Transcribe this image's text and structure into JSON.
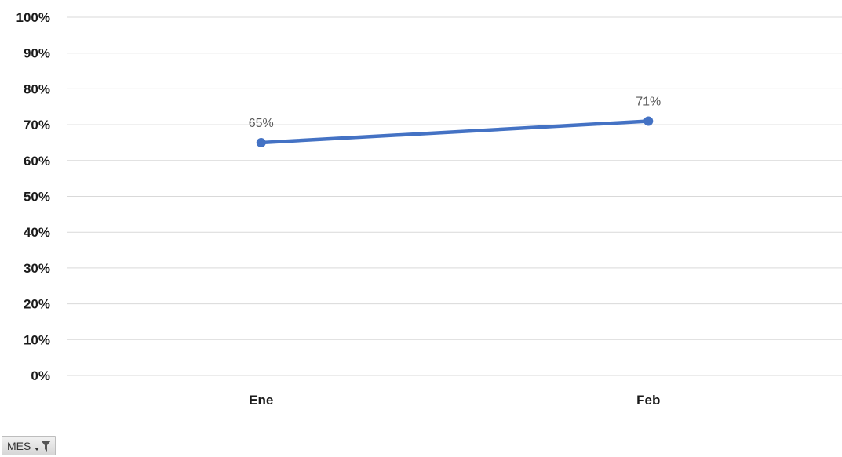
{
  "chart_data": {
    "type": "line",
    "categories": [
      "Ene",
      "Feb"
    ],
    "series": [
      {
        "values": [
          0.65,
          0.71
        ],
        "data_labels": [
          "65%",
          "71%"
        ],
        "color": "#4472C4"
      }
    ],
    "ylim": [
      0,
      1
    ],
    "yticks": [
      "0%",
      "10%",
      "20%",
      "30%",
      "40%",
      "50%",
      "60%",
      "70%",
      "80%",
      "90%",
      "100%"
    ],
    "grid": true,
    "legend": "none"
  },
  "field_button": {
    "label": "MES",
    "icon": "filter-icon"
  },
  "colors": {
    "line": "#4472C4",
    "grid": "#D9D9D9"
  }
}
